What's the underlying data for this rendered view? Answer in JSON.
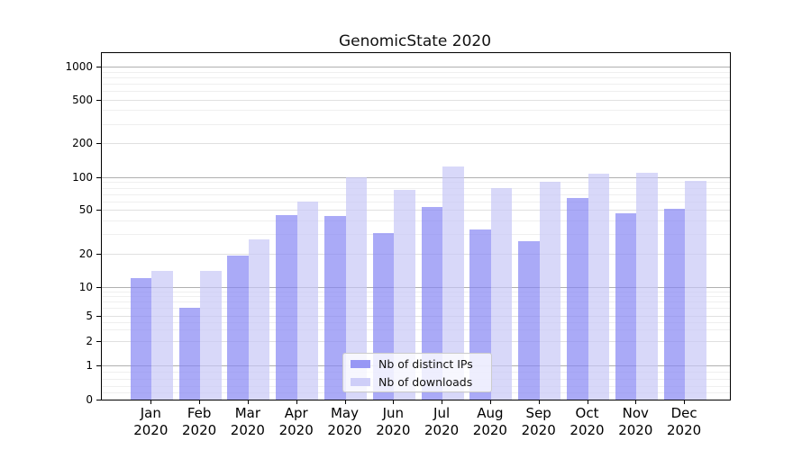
{
  "title": "GenomicState 2020",
  "chart_data": {
    "type": "bar",
    "title": "GenomicState 2020",
    "categories": [
      "Jan 2020",
      "Feb 2020",
      "Mar 2020",
      "Apr 2020",
      "May 2020",
      "Jun 2020",
      "Jul 2020",
      "Aug 2020",
      "Sep 2020",
      "Oct 2020",
      "Nov 2020",
      "Dec 2020"
    ],
    "months": [
      "Jan",
      "Feb",
      "Mar",
      "Apr",
      "May",
      "Jun",
      "Jul",
      "Aug",
      "Sep",
      "Oct",
      "Nov",
      "Dec"
    ],
    "year": "2020",
    "series": [
      {
        "name": "Nb of distinct IPs",
        "color": "#8686f3",
        "values": [
          12,
          6,
          19,
          45,
          44,
          31,
          53,
          33,
          26,
          64,
          47,
          51
        ]
      },
      {
        "name": "Nb of downloads",
        "color": "#c7c7f7",
        "values": [
          14,
          14,
          27,
          60,
          100,
          77,
          125,
          79,
          91,
          107,
          110,
          93
        ]
      }
    ],
    "y_axis": {
      "scale": "symlog",
      "ticks": [
        0,
        1,
        2,
        5,
        10,
        20,
        50,
        100,
        200,
        500,
        1000
      ],
      "range": [
        0,
        1000
      ]
    },
    "x_axis": {
      "tick_format": "month newline year"
    },
    "legend": {
      "position": "lower center",
      "entries": [
        "Nb of distinct IPs",
        "Nb of downloads"
      ]
    },
    "grid": true
  },
  "colors": {
    "bar_distinct_ips": "#8686f3",
    "bar_downloads": "#c7c7f7",
    "grid_major": "#b0b0b0",
    "grid_mid": "#e0e0e0",
    "grid_minor": "#efefef",
    "spine": "#000000",
    "text": "#000000"
  }
}
